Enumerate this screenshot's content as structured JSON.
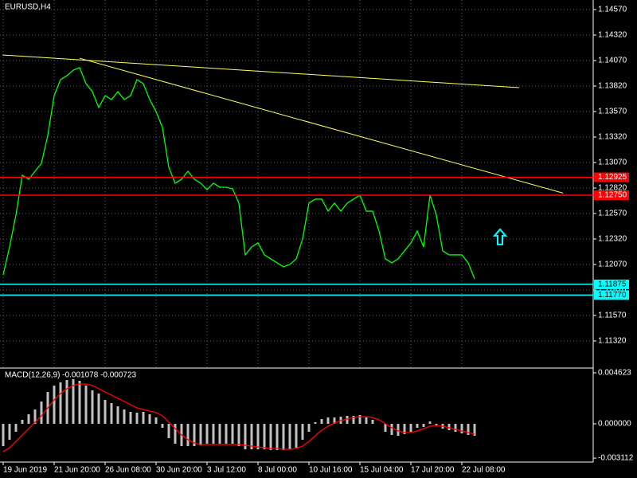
{
  "chart_data": [
    {
      "type": "line",
      "title": "EURUSD,H4",
      "categories": [
        "19 Jun 2019",
        null,
        null,
        null,
        null,
        null,
        null,
        null,
        "21 Jun 20:00",
        null,
        null,
        null,
        null,
        null,
        null,
        null,
        "26 Jun 08:00",
        null,
        null,
        null,
        null,
        null,
        null,
        null,
        "30 Jun 20:00",
        null,
        null,
        null,
        null,
        null,
        null,
        null,
        "3 Jul 12:00",
        null,
        null,
        null,
        null,
        null,
        null,
        null,
        "8 Jul 00:00",
        null,
        null,
        null,
        null,
        null,
        null,
        null,
        "10 Jul 16:00",
        null,
        null,
        null,
        null,
        null,
        null,
        null,
        "15 Jul 04:00",
        null,
        null,
        null,
        null,
        null,
        null,
        null,
        "17 Jul 20:00",
        null,
        null,
        null,
        null,
        null,
        null,
        null,
        "22 Jul 08:00",
        null,
        null
      ],
      "series": [
        {
          "color": "#00ff00",
          "values": [
            1.11968,
            1.12242,
            1.12554,
            1.12945,
            1.12906,
            1.12984,
            1.13062,
            1.13336,
            1.13726,
            1.13883,
            1.13922,
            1.13976,
            1.14,
            1.13843,
            1.13765,
            1.13609,
            1.13726,
            1.13687,
            1.13765,
            1.13687,
            1.13726,
            1.13883,
            1.13843,
            1.13687,
            1.1357,
            1.13414,
            1.13023,
            1.12867,
            1.12906,
            1.12984,
            1.12906,
            1.12867,
            1.12804,
            1.12867,
            1.12828,
            1.12828,
            1.12812,
            1.12672,
            1.12164,
            1.12242,
            1.12281,
            1.12164,
            1.12125,
            1.12086,
            1.12047,
            1.1207,
            1.12125,
            1.1232,
            1.12672,
            1.12711,
            1.12711,
            1.12593,
            1.12672,
            1.12593,
            1.12672,
            1.12711,
            1.1275,
            1.12593,
            1.12593,
            1.12398,
            1.12125,
            1.12086,
            1.12125,
            1.12203,
            1.12281,
            1.12398,
            1.12242,
            1.1275,
            1.12554,
            1.12203,
            1.12164,
            1.12164,
            1.12164,
            1.12086,
            1.11929
          ]
        }
      ],
      "ylim": [
        1.11054,
        1.14664
      ],
      "yticks": [
        {
          "value": 1.1457,
          "label": "1.14570"
        },
        {
          "value": 1.1432,
          "label": "1.14320"
        },
        {
          "value": 1.1407,
          "label": "1.14070"
        },
        {
          "value": 1.1382,
          "label": "1.13820"
        },
        {
          "value": 1.1357,
          "label": "1.13570"
        },
        {
          "value": 1.1332,
          "label": "1.13320"
        },
        {
          "value": 1.1307,
          "label": "1.13070"
        },
        {
          "value": 1.1282,
          "label": "1.12820"
        },
        {
          "value": 1.1257,
          "label": "1.12570"
        },
        {
          "value": 1.1232,
          "label": "1.12320"
        },
        {
          "value": 1.1207,
          "label": "1.12070"
        },
        {
          "value": 1.1182,
          "label": "1.11820"
        },
        {
          "value": 1.1157,
          "label": "1.11570"
        },
        {
          "value": 1.1132,
          "label": "1.11320"
        }
      ],
      "grid": true,
      "levels": [
        {
          "value": 1.12925,
          "label": "1.12925",
          "color": "#ff0000"
        },
        {
          "value": 1.1275,
          "label": "1.12750",
          "color": "#ff0000"
        },
        {
          "value": 1.11875,
          "label": "1.11875",
          "color": "#00ffff"
        },
        {
          "value": 1.1177,
          "label": "1.11770",
          "color": "#00ffff"
        }
      ],
      "trendlines": [
        {
          "color": "#ffff66",
          "x": [
            -0.1,
            81
          ],
          "y": [
            1.14125,
            1.13804
          ]
        },
        {
          "color": "#ffff66",
          "x": [
            12,
            87.9
          ],
          "y": [
            1.14093,
            1.1277
          ]
        }
      ],
      "arrow": {
        "x": 78,
        "y": 1.12336,
        "color": "#00ffff"
      }
    },
    {
      "type": "bar",
      "title": "MACD(12,26,9) -0.001078 -0.000723",
      "series": [
        {
          "kind": "bar",
          "color": "#c0c0c0",
          "values": [
            -0.002022,
            -0.001444,
            -0.000722,
            0.000361,
            0.000866,
            0.0013,
            0.002022,
            0.002888,
            0.003466,
            0.003754,
            0.003971,
            0.004043,
            0.003899,
            0.003466,
            0.003032,
            0.002744,
            0.002166,
            0.001877,
            0.001588,
            0.0013,
            0.001083,
            0.001011,
            0.001083,
            0.000866,
            0.000578,
            -0.000361,
            -0.0013,
            -0.001805,
            -0.002022,
            -0.002022,
            -0.002022,
            -0.001949,
            -0.001805,
            -0.001805,
            -0.001805,
            -0.001805,
            -0.001805,
            -0.002022,
            -0.00231,
            -0.00231,
            -0.00231,
            -0.00231,
            -0.002383,
            -0.002383,
            -0.002383,
            -0.00231,
            -0.002166,
            -0.001444,
            -0.000722,
            0.000144,
            0.000433,
            0.000578,
            0.000578,
            0.00065,
            0.000722,
            0.000722,
            0.000794,
            0.000578,
            0.000361,
            0,
            -0.000722,
            -0.001011,
            -0.001083,
            -0.000939,
            -0.000722,
            -0.000361,
            -0.000289,
            0.000217,
            -0.000144,
            -0.000433,
            -0.000578,
            -0.000722,
            -0.000866,
            -0.001011,
            -0.001083
          ]
        },
        {
          "kind": "line",
          "color": "#ff0000",
          "values": [
            -0.002527,
            -0.002166,
            -0.001588,
            -0.001011,
            -0.000433,
            0.000144,
            0.000722,
            0.001444,
            0.002166,
            0.002744,
            0.003177,
            0.003466,
            0.00361,
            0.00361,
            0.003466,
            0.003177,
            0.002888,
            0.002599,
            0.00231,
            0.002022,
            0.001733,
            0.001444,
            0.0013,
            0.001155,
            0.001011,
            0.000722,
            0.000144,
            -0.000433,
            -0.001011,
            -0.001444,
            -0.001733,
            -0.001877,
            -0.001877,
            -0.001877,
            -0.001877,
            -0.001877,
            -0.001877,
            -0.001877,
            -0.001949,
            -0.002022,
            -0.002094,
            -0.002166,
            -0.002238,
            -0.002238,
            -0.00231,
            -0.00231,
            -0.002238,
            -0.002022,
            -0.001588,
            -0.001083,
            -0.000578,
            -0.000217,
            7.2e-05,
            0.000289,
            0.000433,
            0.000578,
            0.00065,
            0.00065,
            0.000578,
            0.000361,
            0,
            -0.000361,
            -0.00065,
            -0.000794,
            -0.000794,
            -0.00065,
            -0.000433,
            -0.000217,
            -0.000144,
            -0.000217,
            -0.000361,
            -0.000505,
            -0.00065,
            -0.000794,
            -0.000939
          ]
        }
      ],
      "ylim": [
        -0.003467,
        0.00498
      ],
      "yticks": [
        0.004623,
        {
          "value": 0,
          "label": "0.000000"
        },
        -0.003112
      ]
    }
  ]
}
